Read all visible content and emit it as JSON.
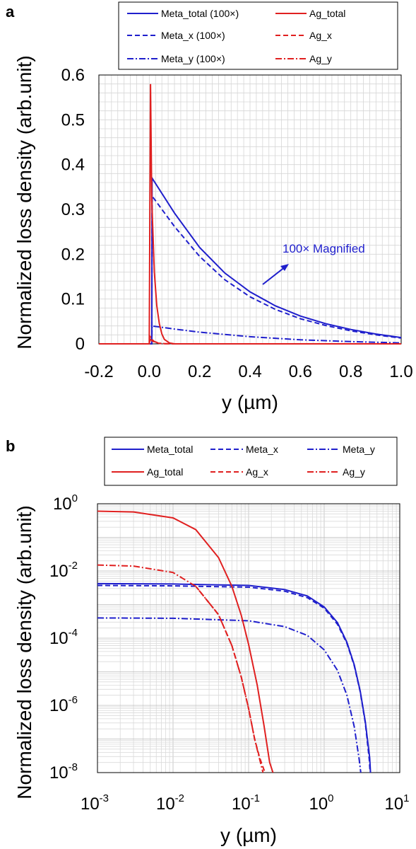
{
  "chart_data": [
    {
      "panel_label": "a",
      "type": "line",
      "xlabel": "y (µm)",
      "ylabel": "Normalized loss density (arb.unit)",
      "xlim": [
        -0.2,
        1.0
      ],
      "ylim": [
        0,
        0.6
      ],
      "x_ticks": [
        "-0.2",
        "0.0",
        "0.2",
        "0.4",
        "0.6",
        "0.8",
        "1.0"
      ],
      "y_ticks": [
        "0",
        "0.1",
        "0.2",
        "0.3",
        "0.4",
        "0.5",
        "0.6"
      ],
      "grid": true,
      "legend": "top",
      "annotation": "100× Magnified",
      "series": [
        {
          "name": "Meta_total (100×)",
          "color": "#1f1fcc",
          "dash": "solid",
          "x": [
            -0.2,
            0.01,
            0.011,
            0.1,
            0.2,
            0.3,
            0.4,
            0.5,
            0.6,
            0.7,
            0.8,
            0.9,
            1.0
          ],
          "y": [
            0,
            0,
            0.37,
            0.292,
            0.215,
            0.158,
            0.116,
            0.085,
            0.062,
            0.045,
            0.032,
            0.022,
            0.014
          ]
        },
        {
          "name": "Meta_x (100×)",
          "color": "#1f1fcc",
          "dash": "dash",
          "x": [
            -0.2,
            0.01,
            0.011,
            0.1,
            0.2,
            0.3,
            0.4,
            0.5,
            0.6,
            0.7,
            0.8,
            0.9,
            1.0
          ],
          "y": [
            0,
            0,
            0.33,
            0.262,
            0.195,
            0.143,
            0.105,
            0.077,
            0.056,
            0.041,
            0.029,
            0.02,
            0.013
          ]
        },
        {
          "name": "Meta_y (100×)",
          "color": "#1f1fcc",
          "dash": "dashdot",
          "x": [
            -0.2,
            0.01,
            0.011,
            0.1,
            0.2,
            0.4,
            0.6,
            0.8,
            1.0
          ],
          "y": [
            0,
            0,
            0.04,
            0.033,
            0.026,
            0.016,
            0.009,
            0.005,
            0.002
          ]
        },
        {
          "name": "Ag_total",
          "color": "#e02020",
          "dash": "solid",
          "x": [
            -0.2,
            0.0,
            0.005,
            0.01,
            0.02,
            0.03,
            0.04,
            0.05,
            0.06,
            0.08,
            0.1,
            1.0
          ],
          "y": [
            0,
            0,
            0.58,
            0.32,
            0.16,
            0.085,
            0.045,
            0.022,
            0.01,
            0.002,
            0,
            0
          ]
        },
        {
          "name": "Ag_x",
          "color": "#e02020",
          "dash": "dash",
          "x": [
            -0.2,
            0.0,
            0.005,
            0.01,
            0.02,
            0.04,
            0.06,
            0.1,
            1.0
          ],
          "y": [
            0,
            0,
            0.01,
            0.007,
            0.004,
            0.001,
            0.0003,
            0,
            0
          ]
        },
        {
          "name": "Ag_y",
          "color": "#e02020",
          "dash": "dashdot",
          "x": [
            -0.2,
            0.0,
            0.005,
            0.01,
            0.02,
            0.04,
            0.06,
            0.1,
            1.0
          ],
          "y": [
            0,
            0,
            0.015,
            0.01,
            0.005,
            0.0015,
            0.0004,
            0,
            0
          ]
        }
      ]
    },
    {
      "panel_label": "b",
      "type": "line",
      "xlabel": "y (µm)",
      "ylabel": "Normalized loss density (arb.unit)",
      "xscale": "log",
      "yscale": "log",
      "xlim": [
        0.001,
        10
      ],
      "ylim": [
        1e-08,
        1
      ],
      "x_tick_labels": [
        {
          "base": "10",
          "exp": "-3"
        },
        {
          "base": "10",
          "exp": "-2"
        },
        {
          "base": "10",
          "exp": "-1"
        },
        {
          "base": "10",
          "exp": "0"
        },
        {
          "base": "10",
          "exp": "1"
        }
      ],
      "y_tick_labels": [
        {
          "base": "10",
          "exp": "0"
        },
        {
          "base": "10",
          "exp": "-2"
        },
        {
          "base": "10",
          "exp": "-4"
        },
        {
          "base": "10",
          "exp": "-6"
        },
        {
          "base": "10",
          "exp": "-8"
        }
      ],
      "grid": true,
      "legend": "top",
      "series": [
        {
          "name": "Meta_total",
          "color": "#1f1fcc",
          "dash": "solid",
          "x": [
            0.001,
            0.01,
            0.1,
            0.3,
            0.6,
            1.0,
            1.5,
            2.0,
            2.5,
            3.0,
            3.5,
            4.0,
            4.1
          ],
          "y": [
            0.0042,
            0.0041,
            0.0037,
            0.0028,
            0.0018,
            0.00085,
            0.00029,
            7.5e-05,
            1.6e-05,
            2.6e-06,
            3.3e-07,
            2.8e-08,
            1e-08
          ]
        },
        {
          "name": "Meta_x",
          "color": "#1f1fcc",
          "dash": "dash",
          "x": [
            0.001,
            0.01,
            0.1,
            0.3,
            0.6,
            1.0,
            1.5,
            2.0,
            2.5,
            3.0,
            3.5,
            3.95,
            4.05
          ],
          "y": [
            0.0037,
            0.0036,
            0.0033,
            0.0025,
            0.0016,
            0.00078,
            0.00026,
            7e-05,
            1.5e-05,
            2.5e-06,
            3e-07,
            2.5e-08,
            1e-08
          ]
        },
        {
          "name": "Meta_y",
          "color": "#1f1fcc",
          "dash": "dashdot",
          "x": [
            0.001,
            0.01,
            0.1,
            0.3,
            0.6,
            1.0,
            1.5,
            2.0,
            2.5,
            2.9,
            3.05
          ],
          "y": [
            0.0004,
            0.00039,
            0.00033,
            0.00022,
            0.00012,
            4.5e-05,
            1.1e-05,
            2e-06,
            2.3e-07,
            2.5e-08,
            1e-08
          ]
        },
        {
          "name": "Ag_total",
          "color": "#e02020",
          "dash": "solid",
          "x": [
            0.001,
            0.003,
            0.01,
            0.02,
            0.04,
            0.06,
            0.08,
            0.1,
            0.13,
            0.16,
            0.19,
            0.21
          ],
          "y": [
            0.6,
            0.57,
            0.38,
            0.17,
            0.025,
            0.0035,
            0.00048,
            6.5e-05,
            4e-06,
            2.5e-07,
            2e-08,
            1e-08
          ]
        },
        {
          "name": "Ag_x",
          "color": "#e02020",
          "dash": "dash",
          "x": [
            0.02,
            0.04,
            0.06,
            0.08,
            0.1,
            0.12,
            0.14,
            0.16,
            0.17
          ],
          "y": [
            0.0035,
            0.0005,
            6e-05,
            7e-06,
            8e-07,
            1e-07,
            2.8e-08,
            1.2e-08,
            1e-08
          ]
        },
        {
          "name": "Ag_y",
          "color": "#e02020",
          "dash": "dashdot",
          "x": [
            0.001,
            0.003,
            0.01,
            0.02,
            0.04,
            0.06,
            0.08,
            0.1,
            0.12,
            0.14,
            0.155
          ],
          "y": [
            0.015,
            0.014,
            0.009,
            0.0035,
            0.0005,
            6e-05,
            7e-06,
            8e-07,
            1e-07,
            2.5e-08,
            1e-08
          ]
        }
      ]
    }
  ]
}
